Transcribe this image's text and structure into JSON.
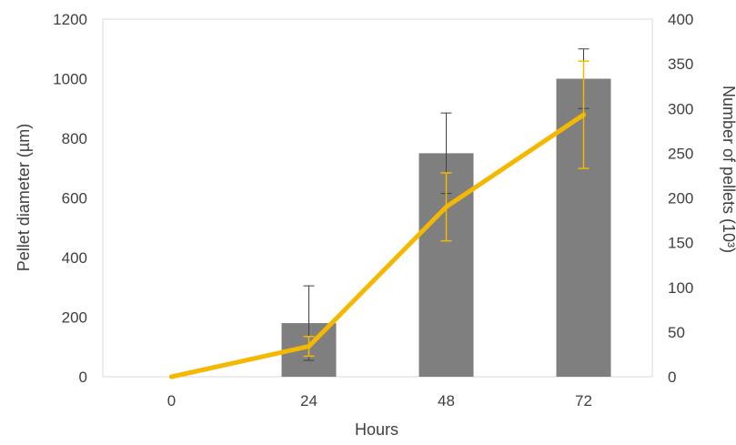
{
  "chart_data": {
    "type": "bar",
    "categories": [
      "0",
      "24",
      "48",
      "72"
    ],
    "xlabel": "Hours",
    "ylabel": "Pellet diameter (µm)",
    "y2label": "Number of pellets (10³)",
    "ylim": [
      0,
      1200
    ],
    "y2lim": [
      0,
      400
    ],
    "yticks": [
      "0",
      "200",
      "400",
      "600",
      "800",
      "1000",
      "1200"
    ],
    "y2ticks": [
      "0",
      "50",
      "100",
      "150",
      "200",
      "250",
      "300",
      "350",
      "400"
    ],
    "grid": false,
    "bar_color": "#7f7f7f",
    "line_color": "#f5b800",
    "series": [
      {
        "kind": "bar",
        "axis": "left",
        "values": [
          0,
          180,
          750,
          1000
        ],
        "error": [
          0,
          125,
          135,
          100
        ]
      },
      {
        "kind": "line",
        "axis": "right",
        "values": [
          0,
          34,
          190,
          293
        ],
        "error": [
          0,
          11,
          38,
          60
        ]
      }
    ]
  }
}
